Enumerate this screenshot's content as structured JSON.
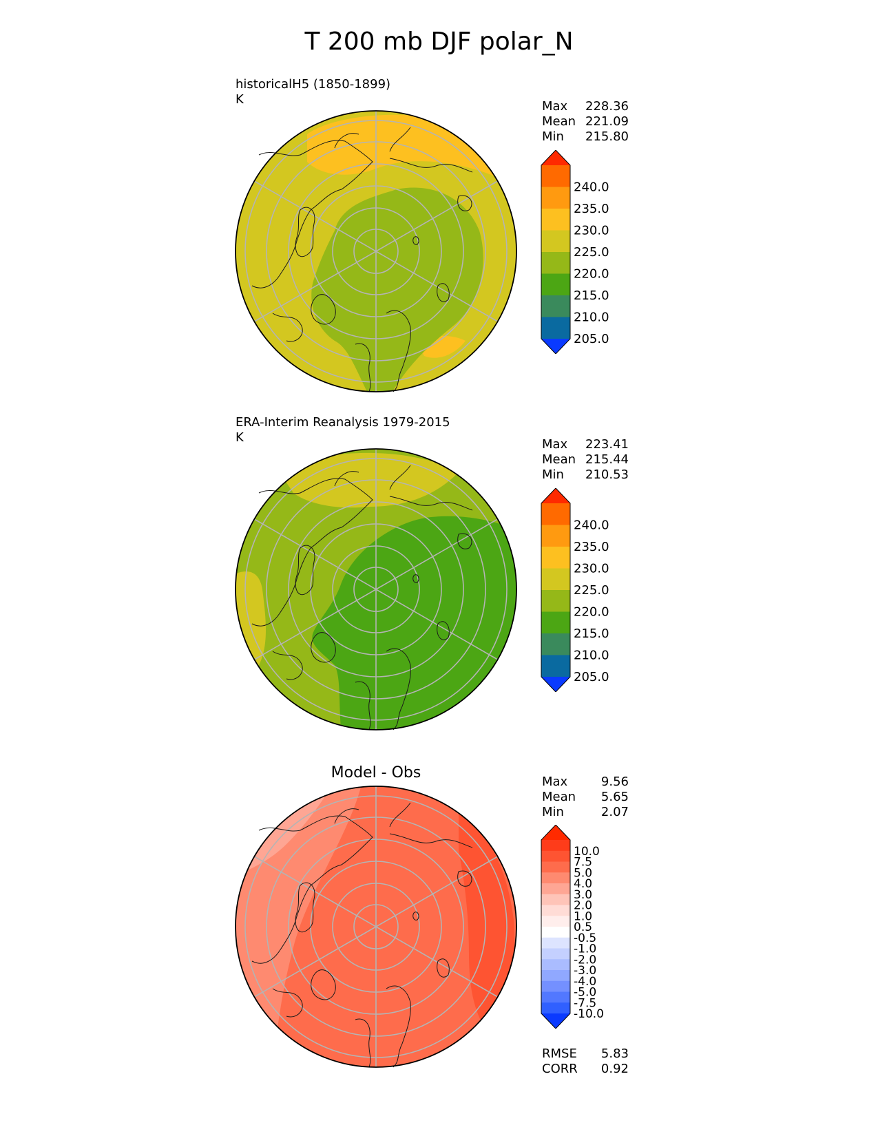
{
  "title": "T 200 mb DJF polar_N",
  "chart_data": [
    {
      "type": "heatmap",
      "projection": "north-polar stereographic map",
      "title": "historicalH5 (1850-1899)",
      "units": "K",
      "stats": [
        {
          "label": "Max",
          "value": "228.36"
        },
        {
          "label": "Mean",
          "value": "221.09"
        },
        {
          "label": "Min",
          "value": "215.80"
        }
      ],
      "colorbar": {
        "levels": [
          "240.0",
          "235.0",
          "230.0",
          "225.0",
          "220.0",
          "215.0",
          "210.0",
          "205.0",
          "200.0"
        ],
        "colors": [
          "#ff2a00",
          "#ff6a00",
          "#ff9a10",
          "#fdc020",
          "#d3c720",
          "#95b818",
          "#4ca614",
          "#3a8a5c",
          "#0a6aa0",
          "#0a3aff"
        ]
      }
    },
    {
      "type": "heatmap",
      "projection": "north-polar stereographic map",
      "title": "ERA-Interim Reanalysis 1979-2015",
      "units": "K",
      "stats": [
        {
          "label": "Max",
          "value": "223.41"
        },
        {
          "label": "Mean",
          "value": "215.44"
        },
        {
          "label": "Min",
          "value": "210.53"
        }
      ],
      "colorbar": {
        "levels": [
          "240.0",
          "235.0",
          "230.0",
          "225.0",
          "220.0",
          "215.0",
          "210.0",
          "205.0",
          "200.0"
        ],
        "colors": [
          "#ff2a00",
          "#ff6a00",
          "#ff9a10",
          "#fdc020",
          "#d3c720",
          "#95b818",
          "#4ca614",
          "#3a8a5c",
          "#0a6aa0",
          "#0a3aff"
        ]
      }
    },
    {
      "type": "heatmap",
      "projection": "north-polar stereographic map",
      "title": "Model - Obs",
      "stats": [
        {
          "label": "Max",
          "value": "9.56"
        },
        {
          "label": "Mean",
          "value": "5.65"
        },
        {
          "label": "Min",
          "value": "2.07"
        }
      ],
      "metrics": [
        {
          "label": "RMSE",
          "value": "5.83"
        },
        {
          "label": "CORR",
          "value": "0.92"
        }
      ],
      "colorbar": {
        "levels": [
          "10.0",
          "7.5",
          "5.0",
          "4.0",
          "3.0",
          "2.0",
          "1.0",
          "0.5",
          "-0.5",
          "-1.0",
          "-2.0",
          "-3.0",
          "-4.0",
          "-5.0",
          "-7.5",
          "-10.0"
        ],
        "colors": [
          "#ff2a00",
          "#fe3c1a",
          "#fe5432",
          "#fe6c4c",
          "#fe8a70",
          "#fea694",
          "#fec4b8",
          "#ffdcd6",
          "#ffeeec",
          "#ffffff",
          "#dde4ff",
          "#c4d0ff",
          "#aabcff",
          "#90a8ff",
          "#7490ff",
          "#5278ff",
          "#3060ff",
          "#0a3aff"
        ]
      }
    }
  ]
}
